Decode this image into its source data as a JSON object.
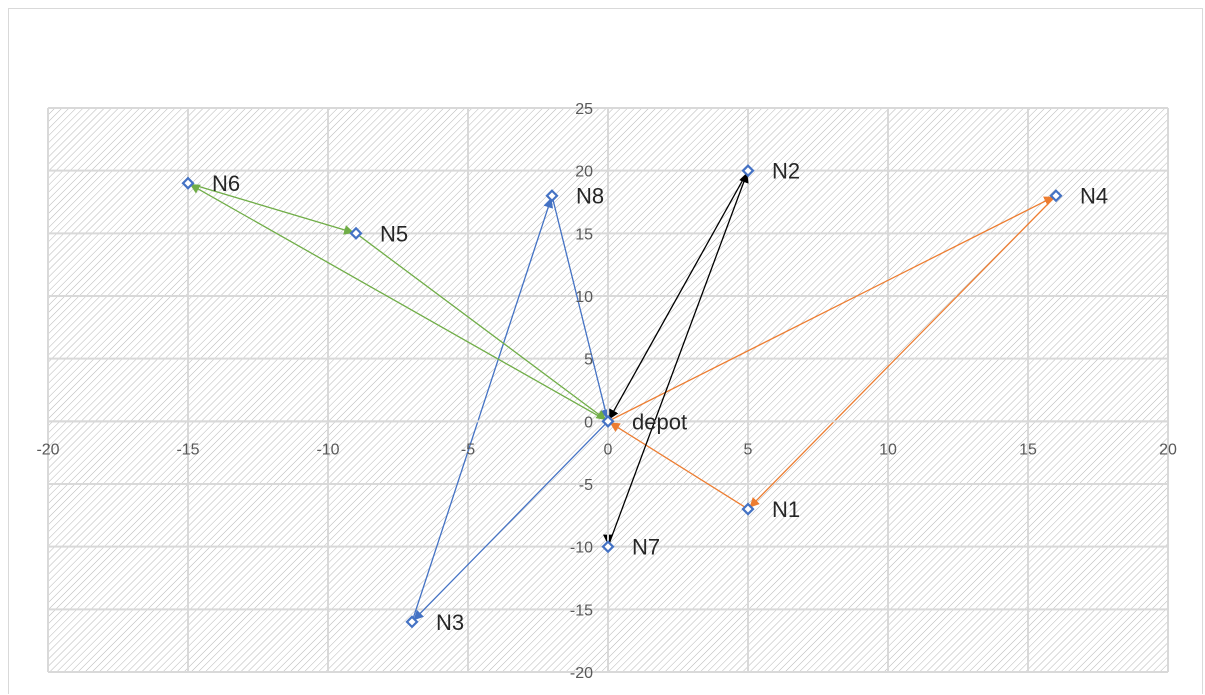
{
  "chart_data": {
    "type": "scatter",
    "title": "",
    "xlabel": "",
    "ylabel": "",
    "xlim": [
      -20,
      20
    ],
    "ylim": [
      -20,
      25
    ],
    "x_ticks": [
      -20,
      -15,
      -10,
      -5,
      0,
      5,
      10,
      15,
      20
    ],
    "y_ticks": [
      -20,
      -15,
      -10,
      -5,
      0,
      5,
      10,
      15,
      20,
      25
    ],
    "grid": true,
    "legend": "none",
    "plot_background": "diagonal hatch",
    "colors": {
      "marker": "#4472C4",
      "grid": "#d9d9d9",
      "hatch": "#b7b7b7",
      "route_blue": "#4472C4",
      "route_orange": "#ED7D31",
      "route_green": "#70AD47",
      "route_black": "#000000"
    },
    "points": [
      {
        "label": "depot",
        "x": 0,
        "y": 0
      },
      {
        "label": "N1",
        "x": 5,
        "y": -7
      },
      {
        "label": "N2",
        "x": 5,
        "y": 20
      },
      {
        "label": "N3",
        "x": -7,
        "y": -16
      },
      {
        "label": "N4",
        "x": 16,
        "y": 18
      },
      {
        "label": "N5",
        "x": -9,
        "y": 15
      },
      {
        "label": "N6",
        "x": -15,
        "y": 19
      },
      {
        "label": "N7",
        "x": 0,
        "y": -10
      },
      {
        "label": "N8",
        "x": -2,
        "y": 18
      }
    ],
    "routes": [
      {
        "color": "route_blue",
        "path": [
          [
            0,
            0
          ],
          [
            -7,
            -16
          ],
          [
            -2,
            18
          ],
          [
            0,
            0
          ]
        ]
      },
      {
        "color": "route_orange",
        "path": [
          [
            0,
            0
          ],
          [
            16,
            18
          ],
          [
            5,
            -7
          ],
          [
            0,
            0
          ]
        ]
      },
      {
        "color": "route_green",
        "path": [
          [
            0,
            0
          ],
          [
            -15,
            19
          ],
          [
            -9,
            15
          ],
          [
            0,
            0
          ]
        ]
      },
      {
        "color": "route_black",
        "path": [
          [
            0,
            0
          ],
          [
            0,
            -10
          ],
          [
            5,
            20
          ],
          [
            0,
            0
          ]
        ]
      }
    ]
  }
}
